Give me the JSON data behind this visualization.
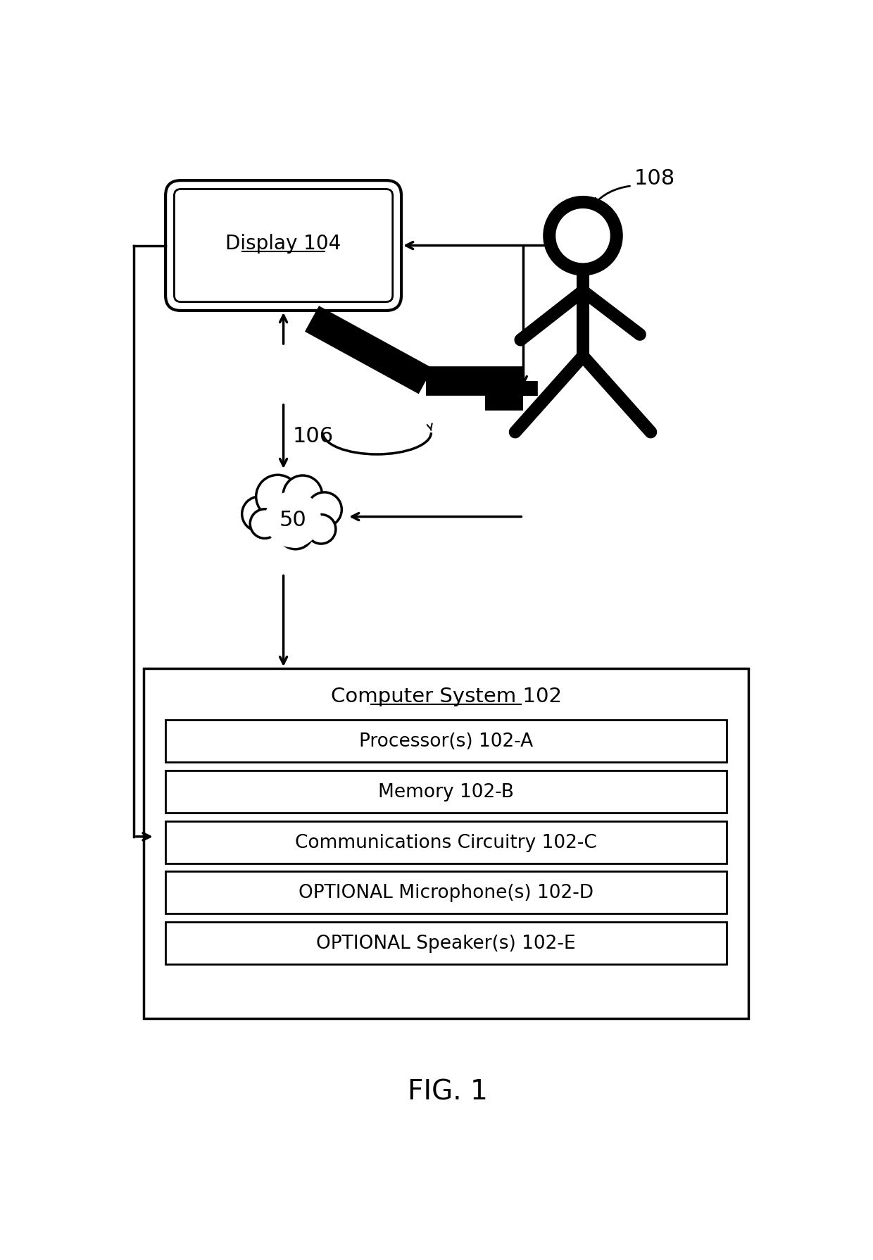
{
  "bg_color": "#ffffff",
  "line_color": "#000000",
  "title": "FIG. 1",
  "display_label": "Display 104",
  "person_label": "108",
  "camera_label": "106",
  "cloud_label": "50",
  "computer_system_label": "Computer System 102",
  "sub_components": [
    "Processor(s) 102-A",
    "Memory 102-B",
    "Communications Circuitry 102-C",
    "OPTIONAL Microphone(s) 102-D",
    "OPTIONAL Speaker(s) 102-E"
  ]
}
